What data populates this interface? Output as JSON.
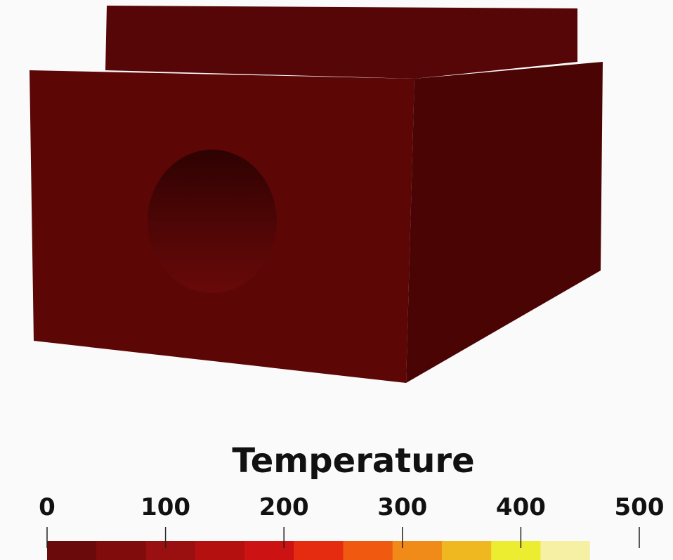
{
  "colorbar": {
    "title": "Temperature",
    "range": [
      0,
      500
    ],
    "ticks": [
      0,
      100,
      200,
      300,
      400,
      500
    ],
    "colors": [
      "#6b0a0a",
      "#800c0c",
      "#9a0f0f",
      "#b51010",
      "#cc1212",
      "#e62c10",
      "#f05a10",
      "#f08a18",
      "#f0b820",
      "#ecec30",
      "#f6f0a4",
      "#fafafa"
    ]
  }
}
